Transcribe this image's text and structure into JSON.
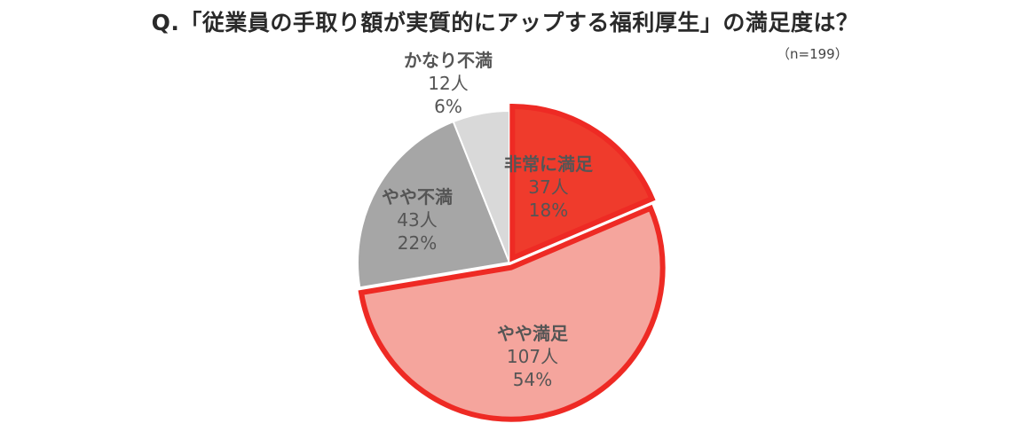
{
  "chart_data": {
    "type": "pie",
    "title": "Q.「従業員の手取り額が実質的にアップする福利厚生」の満足度は？",
    "sample_size": "（n=199）",
    "slices": [
      {
        "name": "非常に満足",
        "count": 37,
        "count_label": "37人",
        "percent_label": "18%",
        "color": "#ef3b2c",
        "highlight": true
      },
      {
        "name": "やや満足",
        "count": 107,
        "count_label": "107人",
        "percent_label": "54%",
        "color": "#f5a59d",
        "highlight": true
      },
      {
        "name": "やや不満",
        "count": 43,
        "count_label": "43人",
        "percent_label": "22%",
        "color": "#a6a6a6",
        "highlight": false
      },
      {
        "name": "かなり不満",
        "count": 12,
        "count_label": "12人",
        "percent_label": "6%",
        "color": "#d9d9d9",
        "highlight": false
      }
    ],
    "highlight_color": "#ee2a24"
  }
}
